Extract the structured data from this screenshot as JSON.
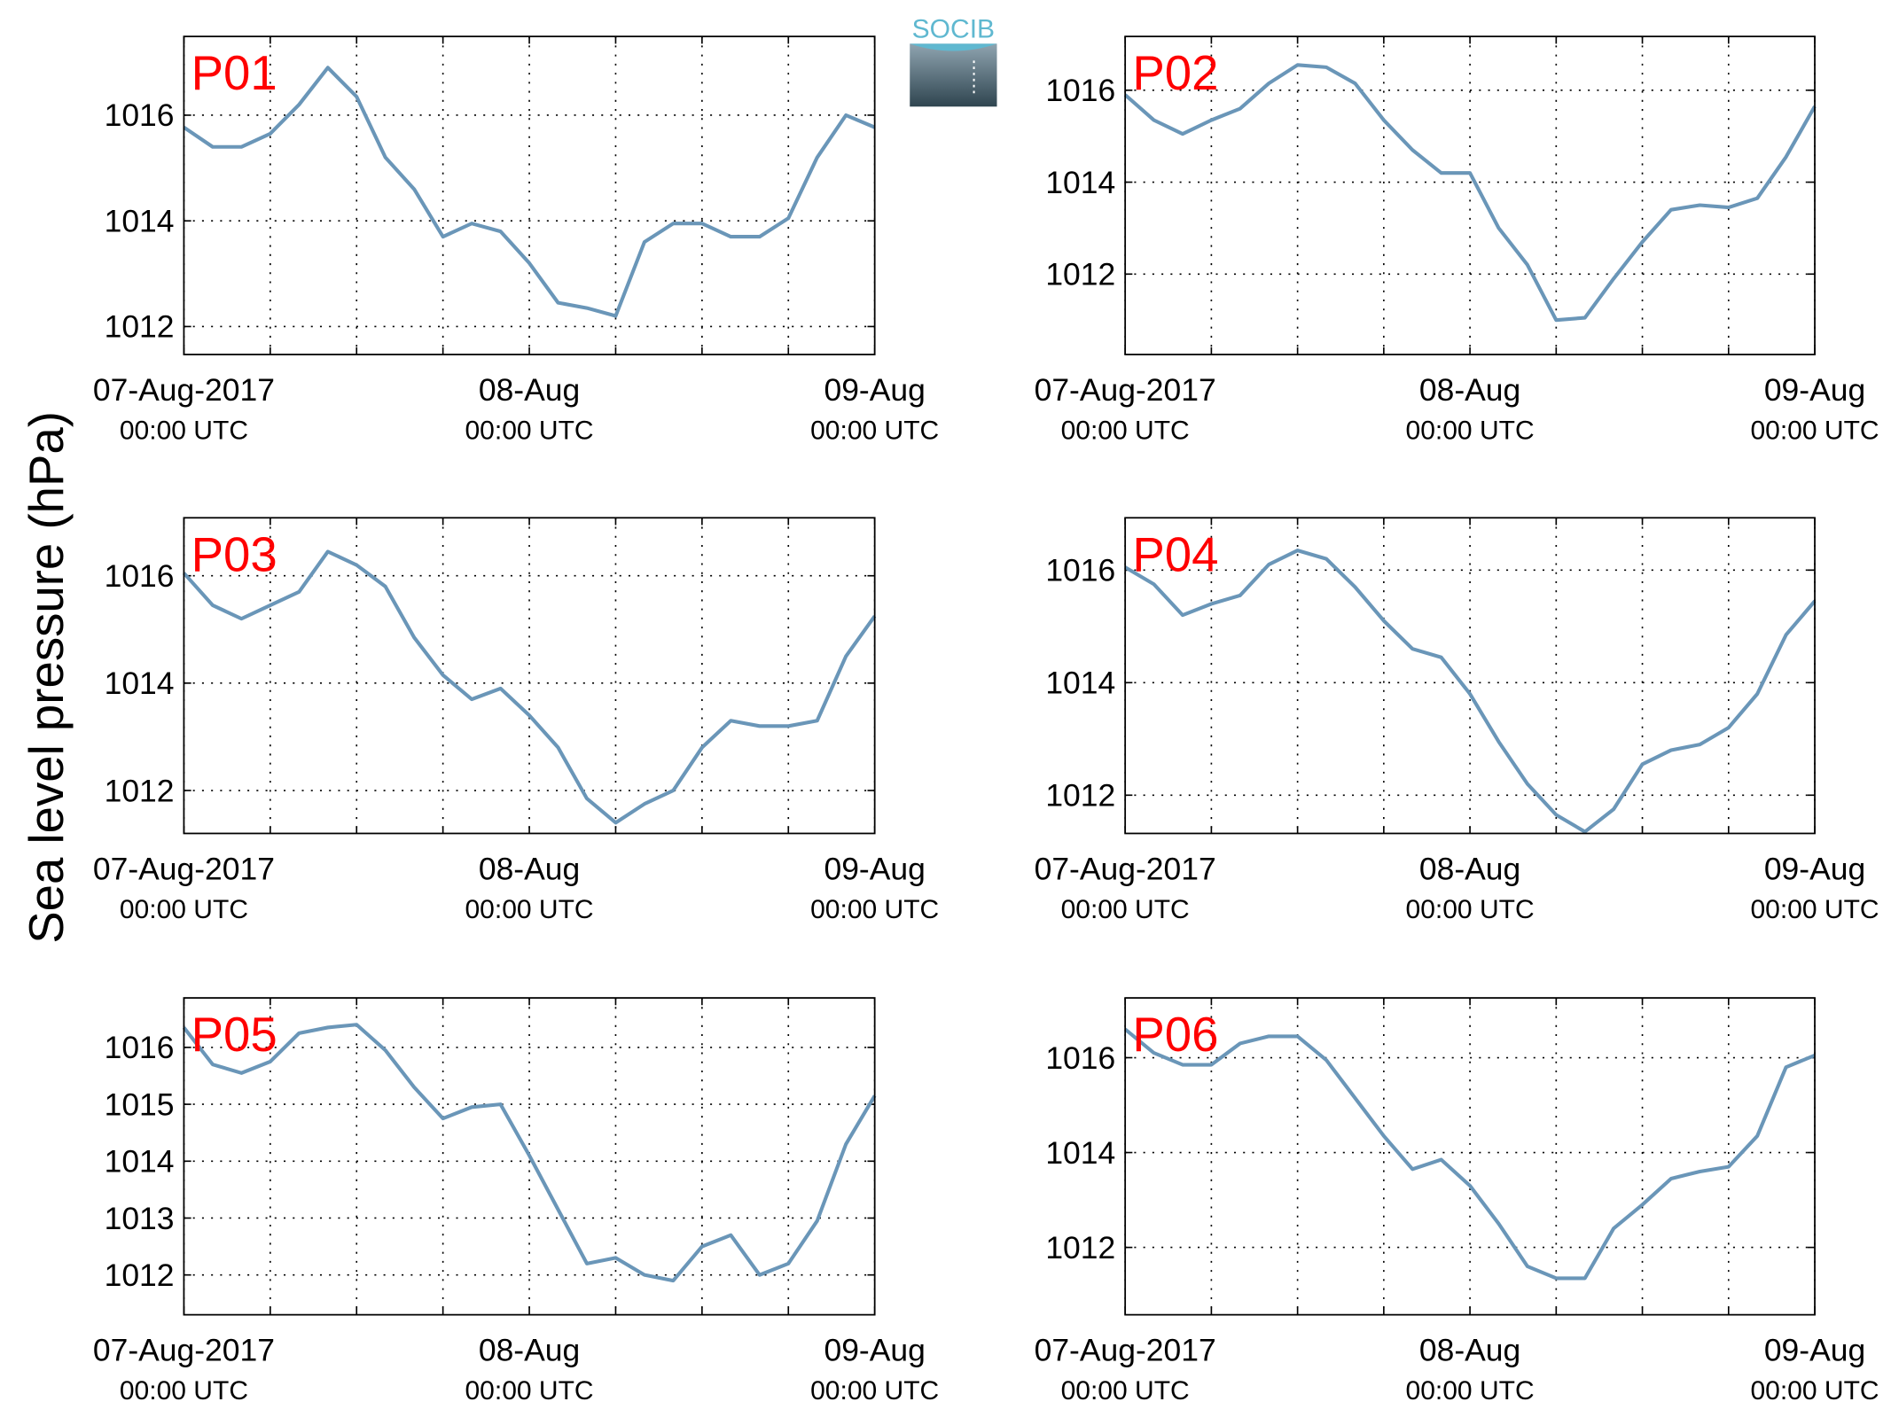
{
  "ylabel": "Sea level pressure (hPa)",
  "logo": "SOCIB",
  "chart_data": [
    {
      "type": "line",
      "title": "P01",
      "color": "#6a96b8",
      "grid": true,
      "x": [
        0,
        2,
        4,
        6,
        8,
        10,
        12,
        14,
        16,
        18,
        20,
        22,
        24,
        26,
        28,
        30,
        32,
        34,
        36,
        38,
        40,
        42,
        44,
        46,
        48
      ],
      "values": [
        1015.77,
        1015.4,
        1015.4,
        1015.65,
        1016.2,
        1016.9,
        1016.35,
        1015.2,
        1014.6,
        1013.7,
        1013.95,
        1013.8,
        1013.2,
        1012.45,
        1012.35,
        1012.2,
        1013.6,
        1013.95,
        1013.95,
        1013.7,
        1013.7,
        1014.05,
        1015.2,
        1016.0,
        1015.77
      ],
      "xlim": [
        0,
        48
      ],
      "xticks": [
        {
          "value": 0,
          "label": "07-Aug-2017",
          "sublabel": "00:00 UTC"
        },
        {
          "value": 24,
          "label": "08-Aug",
          "sublabel": "00:00 UTC"
        },
        {
          "value": 48,
          "label": "09-Aug",
          "sublabel": "00:00 UTC"
        }
      ],
      "xminorticks": [
        6,
        12,
        18,
        30,
        36,
        42
      ],
      "ylim": [
        1011.47,
        1017.49
      ],
      "yticks": [
        1012,
        1014,
        1016
      ]
    },
    {
      "type": "line",
      "title": "P02",
      "color": "#6a96b8",
      "grid": true,
      "x": [
        0,
        2,
        4,
        6,
        8,
        10,
        12,
        14,
        16,
        18,
        20,
        22,
        24,
        26,
        28,
        30,
        32,
        34,
        36,
        38,
        40,
        42,
        44,
        46,
        48
      ],
      "values": [
        1015.9,
        1015.35,
        1015.05,
        1015.35,
        1015.6,
        1016.15,
        1016.55,
        1016.5,
        1016.15,
        1015.35,
        1014.7,
        1014.2,
        1014.2,
        1013.0,
        1012.2,
        1011.0,
        1011.05,
        1011.9,
        1012.7,
        1013.4,
        1013.5,
        1013.45,
        1013.65,
        1014.55,
        1015.65
      ],
      "xlim": [
        0,
        48
      ],
      "xticks": [
        {
          "value": 0,
          "label": "07-Aug-2017",
          "sublabel": "00:00 UTC"
        },
        {
          "value": 24,
          "label": "08-Aug",
          "sublabel": "00:00 UTC"
        },
        {
          "value": 48,
          "label": "09-Aug",
          "sublabel": "00:00 UTC"
        }
      ],
      "xminorticks": [
        6,
        12,
        18,
        30,
        36,
        42
      ],
      "ylim": [
        1010.25,
        1017.17
      ],
      "yticks": [
        1012,
        1014,
        1016
      ]
    },
    {
      "type": "line",
      "title": "P03",
      "color": "#6a96b8",
      "grid": true,
      "x": [
        0,
        2,
        4,
        6,
        8,
        10,
        12,
        14,
        16,
        18,
        20,
        22,
        24,
        26,
        28,
        30,
        32,
        34,
        36,
        38,
        40,
        42,
        44,
        46,
        48
      ],
      "values": [
        1016.05,
        1015.45,
        1015.2,
        1015.45,
        1015.7,
        1016.45,
        1016.2,
        1015.8,
        1014.85,
        1014.15,
        1013.7,
        1013.9,
        1013.4,
        1012.8,
        1011.85,
        1011.4,
        1011.75,
        1012.0,
        1012.8,
        1013.3,
        1013.2,
        1013.2,
        1013.3,
        1014.5,
        1015.25
      ],
      "xlim": [
        0,
        48
      ],
      "xticks": [
        {
          "value": 0,
          "label": "07-Aug-2017",
          "sublabel": "00:00 UTC"
        },
        {
          "value": 24,
          "label": "08-Aug",
          "sublabel": "00:00 UTC"
        },
        {
          "value": 48,
          "label": "09-Aug",
          "sublabel": "00:00 UTC"
        }
      ],
      "xminorticks": [
        6,
        12,
        18,
        30,
        36,
        42
      ],
      "ylim": [
        1011.2,
        1017.08
      ],
      "yticks": [
        1012,
        1014,
        1016
      ]
    },
    {
      "type": "line",
      "title": "P04",
      "color": "#6a96b8",
      "grid": true,
      "x": [
        0,
        2,
        4,
        6,
        8,
        10,
        12,
        14,
        16,
        18,
        20,
        22,
        24,
        26,
        28,
        30,
        32,
        34,
        36,
        38,
        40,
        42,
        44,
        46,
        48
      ],
      "values": [
        1016.05,
        1015.75,
        1015.2,
        1015.4,
        1015.55,
        1016.1,
        1016.35,
        1016.2,
        1015.7,
        1015.1,
        1014.6,
        1014.45,
        1013.8,
        1012.95,
        1012.2,
        1011.65,
        1011.35,
        1011.75,
        1012.55,
        1012.8,
        1012.9,
        1013.2,
        1013.8,
        1014.85,
        1015.45
      ],
      "xlim": [
        0,
        48
      ],
      "xticks": [
        {
          "value": 0,
          "label": "07-Aug-2017",
          "sublabel": "00:00 UTC"
        },
        {
          "value": 24,
          "label": "08-Aug",
          "sublabel": "00:00 UTC"
        },
        {
          "value": 48,
          "label": "09-Aug",
          "sublabel": "00:00 UTC"
        }
      ],
      "xminorticks": [
        6,
        12,
        18,
        30,
        36,
        42
      ],
      "ylim": [
        1011.32,
        1016.93
      ],
      "yticks": [
        1012,
        1014,
        1016
      ]
    },
    {
      "type": "line",
      "title": "P05",
      "color": "#6a96b8",
      "grid": true,
      "x": [
        0,
        2,
        4,
        6,
        8,
        10,
        12,
        14,
        16,
        18,
        20,
        22,
        24,
        26,
        28,
        30,
        32,
        34,
        36,
        38,
        40,
        42,
        44,
        46,
        48
      ],
      "values": [
        1016.35,
        1015.7,
        1015.55,
        1015.75,
        1016.25,
        1016.35,
        1016.4,
        1015.95,
        1015.3,
        1014.75,
        1014.95,
        1015.0,
        1014.1,
        1013.15,
        1012.2,
        1012.3,
        1012.0,
        1011.9,
        1012.5,
        1012.7,
        1012.0,
        1012.2,
        1012.95,
        1014.3,
        1015.15
      ],
      "xlim": [
        0,
        48
      ],
      "xticks": [
        {
          "value": 0,
          "label": "07-Aug-2017",
          "sublabel": "00:00 UTC"
        },
        {
          "value": 24,
          "label": "08-Aug",
          "sublabel": "00:00 UTC"
        },
        {
          "value": 48,
          "label": "09-Aug",
          "sublabel": "00:00 UTC"
        }
      ],
      "xminorticks": [
        6,
        12,
        18,
        30,
        36,
        42
      ],
      "ylim": [
        1011.3,
        1016.87
      ],
      "yticks": [
        1012,
        1013,
        1014,
        1015,
        1016
      ]
    },
    {
      "type": "line",
      "title": "P06",
      "color": "#6a96b8",
      "grid": true,
      "x": [
        0,
        2,
        4,
        6,
        8,
        10,
        12,
        14,
        16,
        18,
        20,
        22,
        24,
        26,
        28,
        30,
        32,
        34,
        36,
        38,
        40,
        42,
        44,
        46,
        48
      ],
      "values": [
        1016.6,
        1016.1,
        1015.85,
        1015.85,
        1016.3,
        1016.45,
        1016.45,
        1015.95,
        1015.15,
        1014.35,
        1013.65,
        1013.85,
        1013.3,
        1012.5,
        1011.6,
        1011.35,
        1011.35,
        1012.4,
        1012.9,
        1013.45,
        1013.6,
        1013.7,
        1014.35,
        1015.8,
        1016.05
      ],
      "xlim": [
        0,
        48
      ],
      "xticks": [
        {
          "value": 0,
          "label": "07-Aug-2017",
          "sublabel": "00:00 UTC"
        },
        {
          "value": 24,
          "label": "08-Aug",
          "sublabel": "00:00 UTC"
        },
        {
          "value": 48,
          "label": "09-Aug",
          "sublabel": "00:00 UTC"
        }
      ],
      "xminorticks": [
        6,
        12,
        18,
        30,
        36,
        42
      ],
      "ylim": [
        1010.58,
        1017.26
      ],
      "yticks": [
        1012,
        1014,
        1016
      ]
    }
  ]
}
